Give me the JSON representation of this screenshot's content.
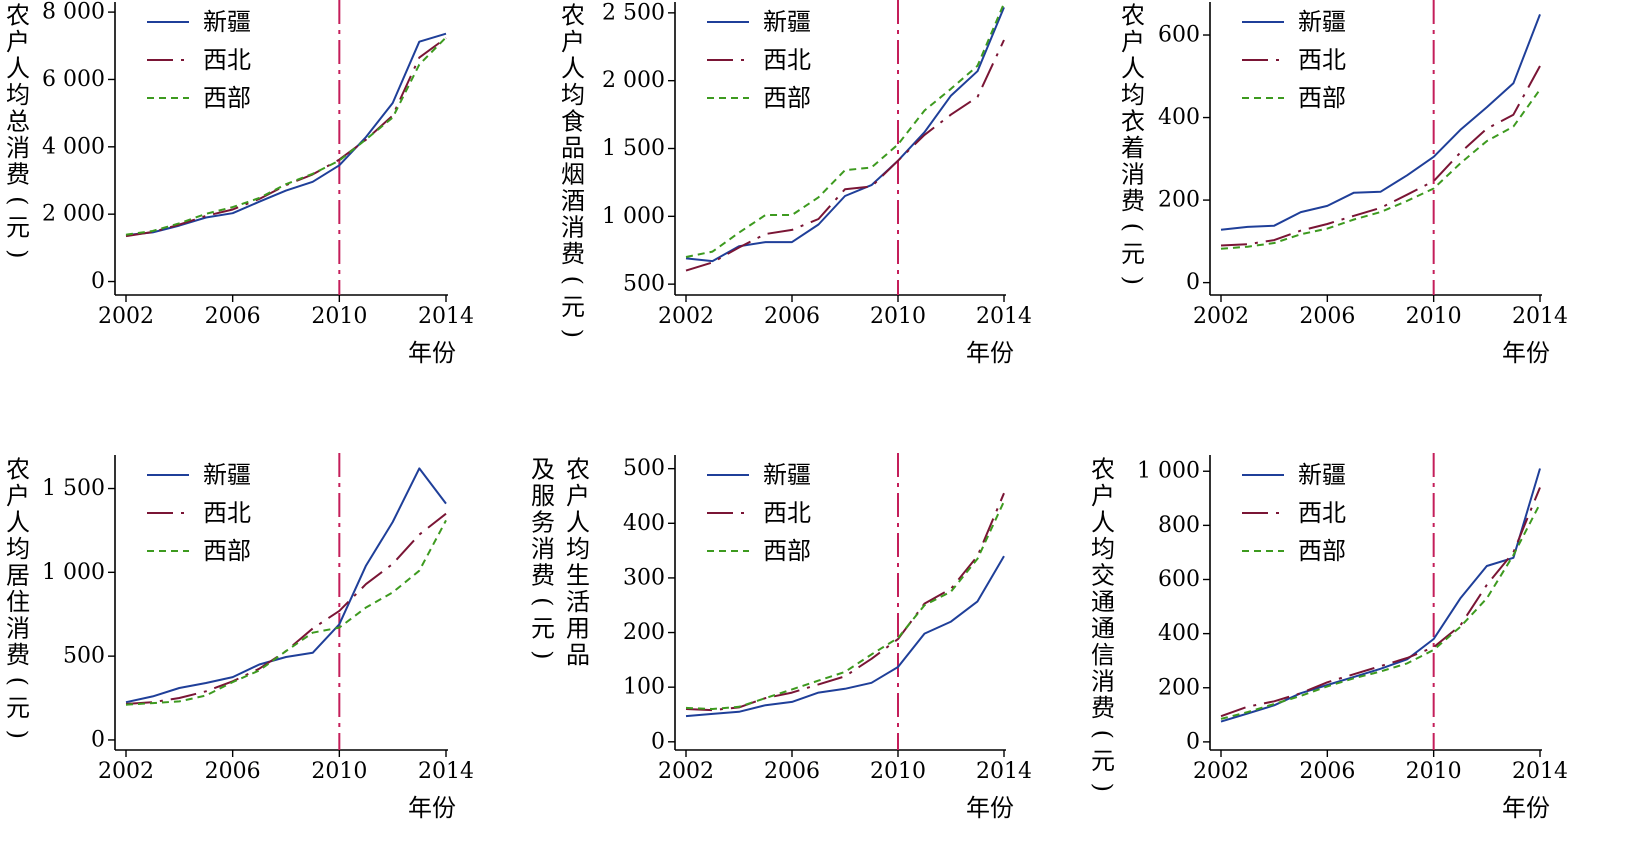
{
  "chart_data": [
    {
      "type": "line",
      "id": "total",
      "ylabel": "农户人均总消费(元)",
      "ylabel_lines": [
        "农户人均总消费(元)"
      ],
      "xlabel": "年份",
      "ylim": [
        -400,
        8300
      ],
      "yticks": [
        0,
        2000,
        4000,
        6000,
        8000
      ],
      "ytick_labels": [
        "0",
        "2 000",
        "4 000",
        "6 000",
        "8 000"
      ],
      "xlim": [
        2002,
        2014
      ],
      "xticks": [
        2002,
        2006,
        2010,
        2014
      ],
      "xtick_labels": [
        "2002",
        "2006",
        "2010",
        "2014"
      ],
      "vline_x": 2010,
      "x": [
        2002,
        2003,
        2004,
        2005,
        2006,
        2007,
        2008,
        2009,
        2010,
        2011,
        2012,
        2013,
        2014
      ],
      "series": [
        {
          "name": "新疆",
          "values": [
            1380,
            1460,
            1660,
            1900,
            2030,
            2370,
            2700,
            2960,
            3450,
            4290,
            5300,
            7120,
            7360
          ]
        },
        {
          "name": "西北",
          "values": [
            1350,
            1470,
            1690,
            1950,
            2140,
            2450,
            2860,
            3180,
            3620,
            4210,
            4930,
            6650,
            7230
          ]
        },
        {
          "name": "西部",
          "values": [
            1390,
            1500,
            1730,
            2010,
            2210,
            2480,
            2890,
            3200,
            3590,
            4220,
            4870,
            6440,
            7250
          ]
        }
      ],
      "legend": [
        "新疆",
        "西北",
        "西部"
      ]
    },
    {
      "type": "line",
      "id": "food",
      "ylabel": "农户人均食品烟酒消费(元)",
      "ylabel_lines": [
        "农户人均食品烟酒消费(元)"
      ],
      "xlabel": "年份",
      "ylim": [
        420,
        2580
      ],
      "yticks": [
        500,
        1000,
        1500,
        2000,
        2500
      ],
      "ytick_labels": [
        "500",
        "1 000",
        "1 500",
        "2 000",
        "2 500"
      ],
      "xlim": [
        2002,
        2014
      ],
      "xticks": [
        2002,
        2006,
        2010,
        2014
      ],
      "xtick_labels": [
        "2002",
        "2006",
        "2010",
        "2014"
      ],
      "vline_x": 2010,
      "x": [
        2002,
        2003,
        2004,
        2005,
        2006,
        2007,
        2008,
        2009,
        2010,
        2011,
        2012,
        2013,
        2014
      ],
      "series": [
        {
          "name": "新疆",
          "values": [
            690,
            670,
            780,
            810,
            810,
            940,
            1150,
            1230,
            1410,
            1620,
            1890,
            2070,
            2540
          ]
        },
        {
          "name": "西北",
          "values": [
            600,
            660,
            770,
            870,
            900,
            980,
            1200,
            1220,
            1410,
            1600,
            1750,
            1880,
            2300
          ]
        },
        {
          "name": "西部",
          "values": [
            700,
            740,
            880,
            1010,
            1010,
            1140,
            1340,
            1360,
            1530,
            1780,
            1940,
            2110,
            2570
          ]
        }
      ],
      "legend": [
        "新疆",
        "西北",
        "西部"
      ]
    },
    {
      "type": "line",
      "id": "clothing",
      "ylabel": "农户人均衣着消费(元)",
      "ylabel_lines": [
        "农户人均衣着消费(元)"
      ],
      "xlabel": "年份",
      "ylim": [
        -30,
        680
      ],
      "yticks": [
        0,
        200,
        400,
        600
      ],
      "ytick_labels": [
        "0",
        "200",
        "400",
        "600"
      ],
      "xlim": [
        2002,
        2014
      ],
      "xticks": [
        2002,
        2006,
        2010,
        2014
      ],
      "xtick_labels": [
        "2002",
        "2006",
        "2010",
        "2014"
      ],
      "vline_x": 2010,
      "x": [
        2002,
        2003,
        2004,
        2005,
        2006,
        2007,
        2008,
        2009,
        2010,
        2011,
        2012,
        2013,
        2014
      ],
      "series": [
        {
          "name": "新疆",
          "values": [
            128,
            135,
            138,
            171,
            186,
            218,
            220,
            260,
            305,
            370,
            425,
            483,
            650
          ]
        },
        {
          "name": "西北",
          "values": [
            90,
            93,
            103,
            126,
            142,
            162,
            181,
            213,
            246,
            315,
            373,
            407,
            525
          ]
        },
        {
          "name": "西部",
          "values": [
            82,
            87,
            96,
            117,
            131,
            153,
            171,
            198,
            228,
            289,
            343,
            378,
            468
          ]
        }
      ],
      "legend": [
        "新疆",
        "西北",
        "西部"
      ]
    },
    {
      "type": "line",
      "id": "housing",
      "ylabel": "农户人均居住消费(元)",
      "ylabel_lines": [
        "农户人均居住消费(元)"
      ],
      "xlabel": "年份",
      "ylim": [
        -60,
        1700
      ],
      "yticks": [
        0,
        500,
        1000,
        1500
      ],
      "ytick_labels": [
        "0",
        "500",
        "1 000",
        "1 500"
      ],
      "xlim": [
        2002,
        2014
      ],
      "xticks": [
        2002,
        2006,
        2010,
        2014
      ],
      "xtick_labels": [
        "2002",
        "2006",
        "2010",
        "2014"
      ],
      "vline_x": 2010,
      "x": [
        2002,
        2003,
        2004,
        2005,
        2006,
        2007,
        2008,
        2009,
        2010,
        2011,
        2012,
        2013,
        2014
      ],
      "series": [
        {
          "name": "新疆",
          "values": [
            225,
            260,
            310,
            340,
            375,
            450,
            495,
            520,
            690,
            1040,
            1300,
            1620,
            1410
          ]
        },
        {
          "name": "西北",
          "values": [
            215,
            225,
            250,
            290,
            350,
            425,
            530,
            665,
            770,
            930,
            1050,
            1225,
            1350
          ]
        },
        {
          "name": "西部",
          "values": [
            210,
            220,
            230,
            265,
            345,
            415,
            530,
            640,
            670,
            790,
            880,
            1010,
            1310
          ]
        }
      ],
      "legend": [
        "新疆",
        "西北",
        "西部"
      ]
    },
    {
      "type": "line",
      "id": "daily",
      "ylabel": "农户人均生活用品及服务消费(元)",
      "ylabel_lines": [
        "农户人均生活用品",
        "及服务消费(元)"
      ],
      "xlabel": "年份",
      "ylim": [
        -15,
        525
      ],
      "yticks": [
        0,
        100,
        200,
        300,
        400,
        500
      ],
      "ytick_labels": [
        "0",
        "100",
        "200",
        "300",
        "400",
        "500"
      ],
      "xlim": [
        2002,
        2014
      ],
      "xticks": [
        2002,
        2006,
        2010,
        2014
      ],
      "xtick_labels": [
        "2002",
        "2006",
        "2010",
        "2014"
      ],
      "vline_x": 2010,
      "x": [
        2002,
        2003,
        2004,
        2005,
        2006,
        2007,
        2008,
        2009,
        2010,
        2011,
        2012,
        2013,
        2014
      ],
      "series": [
        {
          "name": "新疆",
          "values": [
            47,
            51,
            55,
            67,
            73,
            90,
            97,
            108,
            137,
            198,
            220,
            257,
            340
          ]
        },
        {
          "name": "西北",
          "values": [
            60,
            58,
            63,
            80,
            90,
            105,
            120,
            152,
            188,
            253,
            280,
            340,
            455
          ]
        },
        {
          "name": "西部",
          "values": [
            62,
            60,
            64,
            80,
            96,
            112,
            128,
            160,
            190,
            250,
            275,
            335,
            440
          ]
        }
      ],
      "legend": [
        "新疆",
        "西北",
        "西部"
      ]
    },
    {
      "type": "line",
      "id": "transport",
      "ylabel": "农户人均交通通信消费(元)",
      "ylabel_lines": [
        "农户人均交通通信消费(元)"
      ],
      "xlabel": "年份",
      "ylim": [
        -30,
        1060
      ],
      "yticks": [
        0,
        200,
        400,
        600,
        800,
        1000
      ],
      "ytick_labels": [
        "0",
        "200",
        "400",
        "600",
        "800",
        "1 000"
      ],
      "xlim": [
        2002,
        2014
      ],
      "xticks": [
        2002,
        2006,
        2010,
        2014
      ],
      "xtick_labels": [
        "2002",
        "2006",
        "2010",
        "2014"
      ],
      "vline_x": 2010,
      "x": [
        2002,
        2003,
        2004,
        2005,
        2006,
        2007,
        2008,
        2009,
        2010,
        2011,
        2012,
        2013,
        2014
      ],
      "series": [
        {
          "name": "新疆",
          "values": [
            75,
            105,
            135,
            180,
            210,
            240,
            270,
            305,
            380,
            530,
            650,
            680,
            1010
          ]
        },
        {
          "name": "西北",
          "values": [
            95,
            130,
            150,
            180,
            220,
            250,
            280,
            310,
            350,
            430,
            580,
            700,
            940
          ]
        },
        {
          "name": "西部",
          "values": [
            85,
            110,
            140,
            170,
            205,
            235,
            260,
            290,
            340,
            425,
            530,
            690,
            880
          ]
        }
      ],
      "legend": [
        "新疆",
        "西北",
        "西部"
      ]
    }
  ],
  "styles": {
    "series_colors": [
      "#1f3f99",
      "#7a1535",
      "#3d9a1f"
    ],
    "vline_color": "#c41e5a",
    "axis_color": "#000000"
  }
}
